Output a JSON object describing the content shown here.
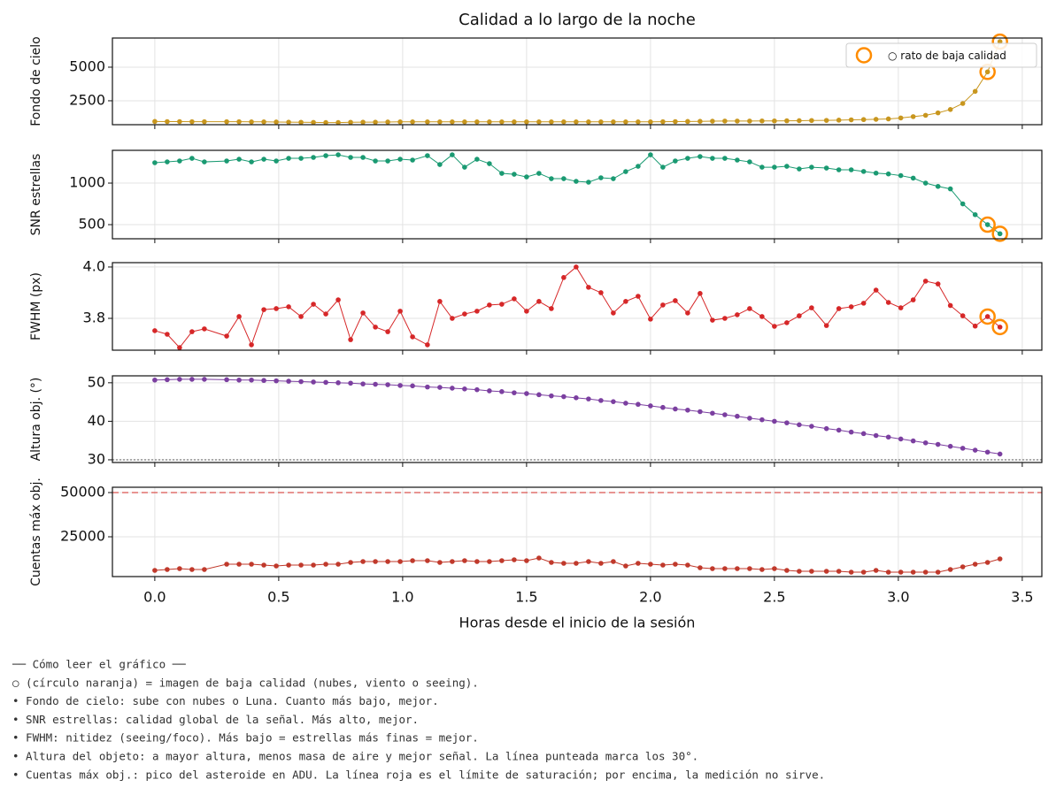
{
  "chart_data": {
    "type": "line",
    "title": "Calidad a lo largo de la noche",
    "xlabel": "Horas desde el inicio de la sesión",
    "x": [
      0,
      0.05,
      0.1,
      0.15,
      0.2,
      0.29,
      0.34,
      0.39,
      0.44,
      0.49,
      0.54,
      0.59,
      0.64,
      0.69,
      0.74,
      0.79,
      0.84,
      0.89,
      0.94,
      0.99,
      1.04,
      1.1,
      1.15,
      1.2,
      1.25,
      1.3,
      1.35,
      1.4,
      1.45,
      1.5,
      1.55,
      1.6,
      1.65,
      1.7,
      1.75,
      1.8,
      1.85,
      1.9,
      1.95,
      2.0,
      2.05,
      2.1,
      2.15,
      2.2,
      2.25,
      2.3,
      2.35,
      2.4,
      2.45,
      2.5,
      2.55,
      2.6,
      2.65,
      2.71,
      2.76,
      2.81,
      2.86,
      2.91,
      2.96,
      3.01,
      3.06,
      3.11,
      3.16,
      3.21,
      3.26,
      3.31,
      3.36,
      3.41
    ],
    "xlim": [
      -0.171,
      3.579
    ],
    "xticks": [
      {
        "value": 0,
        "label": "0.0"
      },
      0.5,
      {
        "value": 1,
        "label": "1.0"
      },
      1.5,
      {
        "value": 2,
        "label": "2.0"
      },
      2.5,
      {
        "value": 3,
        "label": "3.0"
      },
      3.5
    ],
    "grid": true,
    "flag_color": "#ff8c00",
    "legend": {
      "label": "○ rato de baja calidad",
      "loc": "upper right"
    },
    "panels": [
      {
        "ylabel": "Fondo de cielo",
        "color": "#c8961e",
        "ylim": [
          720,
          7170
        ],
        "yticks": [
          2500,
          5000
        ],
        "flagged": [
          66,
          67
        ],
        "values": [
          960,
          950,
          950,
          940,
          940,
          940,
          940,
          930,
          930,
          920,
          910,
          900,
          890,
          880,
          880,
          900,
          910,
          910,
          920,
          930,
          930,
          930,
          930,
          930,
          930,
          930,
          930,
          930,
          930,
          930,
          930,
          930,
          930,
          930,
          930,
          930,
          930,
          930,
          930,
          930,
          940,
          950,
          960,
          970,
          980,
          990,
          990,
          990,
          1000,
          1000,
          1010,
          1020,
          1030,
          1040,
          1060,
          1080,
          1100,
          1120,
          1150,
          1220,
          1320,
          1420,
          1600,
          1850,
          2300,
          3200,
          4650,
          6900
        ]
      },
      {
        "ylabel": "SNR estrellas",
        "color": "#1a9a72",
        "ylim": [
          330,
          1394
        ],
        "yticks": [
          500,
          1000
        ],
        "flagged": [
          66,
          67
        ],
        "values": [
          1245,
          1255,
          1266,
          1298,
          1255,
          1266,
          1287,
          1255,
          1287,
          1266,
          1298,
          1298,
          1309,
          1330,
          1340,
          1309,
          1309,
          1266,
          1266,
          1287,
          1277,
          1330,
          1223,
          1340,
          1191,
          1287,
          1234,
          1117,
          1106,
          1074,
          1117,
          1053,
          1053,
          1021,
          1011,
          1064,
          1053,
          1138,
          1202,
          1340,
          1191,
          1266,
          1298,
          1319,
          1298,
          1298,
          1277,
          1255,
          1191,
          1191,
          1202,
          1170,
          1191,
          1181,
          1160,
          1160,
          1140,
          1120,
          1110,
          1090,
          1060,
          1000,
          960,
          930,
          750,
          620,
          500,
          390
        ]
      },
      {
        "ylabel": "FWHM (px)",
        "color": "#d62728",
        "ylim": [
          3.676,
          4.017
        ],
        "yticks": [
          3.8,
          {
            "value": 4,
            "label": "4.0"
          }
        ],
        "flagged": [
          66,
          67
        ],
        "values": [
          3.752,
          3.738,
          3.686,
          3.748,
          3.759,
          3.731,
          3.807,
          3.697,
          3.834,
          3.838,
          3.845,
          3.807,
          3.855,
          3.817,
          3.872,
          3.717,
          3.821,
          3.766,
          3.748,
          3.828,
          3.728,
          3.697,
          3.866,
          3.8,
          3.817,
          3.828,
          3.852,
          3.855,
          3.876,
          3.828,
          3.866,
          3.838,
          3.959,
          4.0,
          3.921,
          3.9,
          3.821,
          3.866,
          3.886,
          3.797,
          3.852,
          3.869,
          3.821,
          3.897,
          3.793,
          3.8,
          3.814,
          3.838,
          3.807,
          3.769,
          3.783,
          3.81,
          3.841,
          3.772,
          3.838,
          3.845,
          3.859,
          3.91,
          3.862,
          3.841,
          3.872,
          3.945,
          3.934,
          3.85,
          3.81,
          3.77,
          3.807,
          3.766
        ]
      },
      {
        "ylabel": "Altura obj. (°)",
        "color": "#7b3fa0",
        "ylim": [
          29.3,
          51.8
        ],
        "yticks": [
          30,
          40,
          50
        ],
        "hline": {
          "value": 30,
          "color": "#888888",
          "dash": "2,2"
        },
        "values": [
          50.7,
          50.8,
          50.9,
          50.9,
          50.9,
          50.8,
          50.7,
          50.7,
          50.6,
          50.5,
          50.4,
          50.3,
          50.2,
          50.1,
          50.0,
          49.9,
          49.7,
          49.6,
          49.5,
          49.3,
          49.2,
          48.9,
          48.8,
          48.6,
          48.4,
          48.2,
          47.9,
          47.7,
          47.4,
          47.2,
          46.9,
          46.6,
          46.4,
          46.1,
          45.8,
          45.4,
          45.1,
          44.7,
          44.4,
          44.0,
          43.6,
          43.2,
          42.9,
          42.5,
          42.1,
          41.7,
          41.3,
          40.8,
          40.4,
          40.0,
          39.6,
          39.1,
          38.7,
          38.1,
          37.7,
          37.2,
          36.8,
          36.3,
          35.9,
          35.4,
          34.9,
          34.4,
          34.0,
          33.5,
          33.0,
          32.5,
          32.0,
          31.5
        ]
      },
      {
        "ylabel": "Cuentas máx obj.",
        "color": "#c0392b",
        "ylim": [
          2500,
          53000
        ],
        "yticks": [
          25000,
          50000
        ],
        "hline": {
          "value": 50000,
          "color": "#d9534f",
          "dash": "7,4"
        },
        "values": [
          6000,
          6500,
          7000,
          6500,
          6500,
          9500,
          9500,
          9500,
          9000,
          8500,
          9000,
          9000,
          9000,
          9500,
          9500,
          10500,
          11000,
          11000,
          11000,
          11000,
          11500,
          11500,
          10500,
          11000,
          11500,
          11000,
          11000,
          11500,
          12000,
          11500,
          13000,
          10500,
          10000,
          10000,
          11000,
          10000,
          11000,
          8500,
          10000,
          9500,
          9000,
          9500,
          9000,
          7500,
          7000,
          7000,
          7000,
          7000,
          6500,
          7000,
          6000,
          5500,
          5500,
          5500,
          5500,
          5000,
          5000,
          6000,
          5000,
          5000,
          5000,
          5000,
          5000,
          6500,
          8000,
          9500,
          10500,
          12500
        ]
      }
    ]
  },
  "notes": [
    "── Cómo leer el gráfico ──",
    "○ (círculo naranja) = imagen de baja calidad (nubes, viento o seeing).",
    "• Fondo de cielo: sube con nubes o Luna. Cuanto más bajo, mejor.",
    "• SNR estrellas: calidad global de la señal. Más alto, mejor.",
    "• FWHM: nitidez (seeing/foco). Más bajo = estrellas más finas = mejor.",
    "• Altura del objeto: a mayor altura, menos masa de aire y mejor señal. La línea punteada marca los 30°.",
    "• Cuentas máx obj.: pico del asteroide en ADU. La línea roja es el límite de saturación; por encima, la medición no sirve."
  ]
}
